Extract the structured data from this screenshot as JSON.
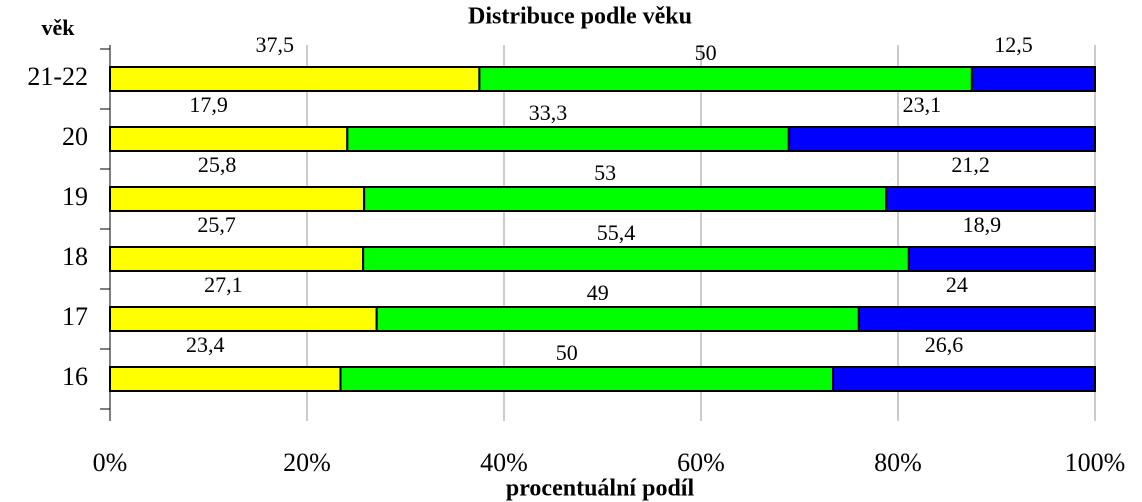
{
  "chart_data": {
    "type": "bar",
    "orientation": "horizontal",
    "stack": "percent",
    "title": "Distribuce podle věku",
    "y_label": "věk",
    "x_label": "procentuální podíl",
    "categories": [
      "21-22",
      "20",
      "19",
      "18",
      "17",
      "16"
    ],
    "series": [
      {
        "color": "#ffff00",
        "values": [
          37.5,
          17.9,
          25.8,
          25.7,
          27.1,
          23.4
        ],
        "value_labels": [
          "37,5",
          "17,9",
          "25,8",
          "25,7",
          "27,1",
          "23,4"
        ]
      },
      {
        "color": "#00ff00",
        "values": [
          50,
          33.3,
          53,
          55.4,
          49,
          50
        ],
        "value_labels": [
          "50",
          "33,3",
          "53",
          "55,4",
          "49",
          "50"
        ]
      },
      {
        "color": "#0000ff",
        "values": [
          12.5,
          23.1,
          21.2,
          18.9,
          24,
          26.6
        ],
        "value_labels": [
          "12,5",
          "23,1",
          "21,2",
          "18,9",
          "24",
          "26,6"
        ]
      }
    ],
    "xlim": [
      0,
      100
    ],
    "xticks": [
      {
        "value": 0,
        "label": "0%"
      },
      {
        "value": 20,
        "label": "20%"
      },
      {
        "value": 40,
        "label": "40%"
      },
      {
        "value": 60,
        "label": "60%"
      },
      {
        "value": 80,
        "label": "80%"
      },
      {
        "value": 100,
        "label": "100%"
      }
    ],
    "grid": true
  }
}
